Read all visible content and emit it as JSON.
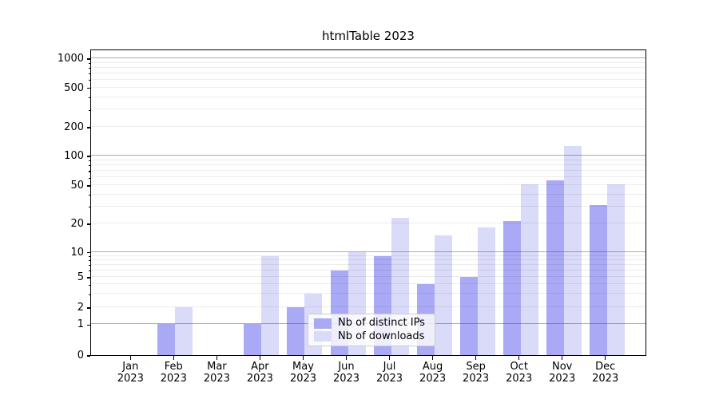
{
  "chart_data": {
    "type": "bar",
    "title": "htmlTable 2023",
    "categories": [
      "Jan 2023",
      "Feb 2023",
      "Mar 2023",
      "Apr 2023",
      "May 2023",
      "Jun 2023",
      "Jul 2023",
      "Aug 2023",
      "Sep 2023",
      "Oct 2023",
      "Nov 2023",
      "Dec 2023"
    ],
    "series": [
      {
        "name": "Nb of distinct IPs",
        "color": "#a9a9f6",
        "values": [
          0,
          1,
          0,
          1,
          2,
          6,
          9,
          4,
          5,
          21,
          56,
          31
        ]
      },
      {
        "name": "Nb of downloads",
        "color": "#dadaf9",
        "values": [
          0,
          2,
          0,
          9,
          3,
          10,
          23,
          15,
          18,
          51,
          125,
          51
        ]
      }
    ],
    "xlabel": "",
    "ylabel": "",
    "yscale": "log-like (asinh, handles 0)",
    "yticks": [
      0,
      1,
      2,
      5,
      10,
      20,
      50,
      100,
      200,
      500,
      1000
    ],
    "ylim": [
      0,
      1300
    ],
    "grid": true,
    "legend_position": "lower center inside plot"
  }
}
